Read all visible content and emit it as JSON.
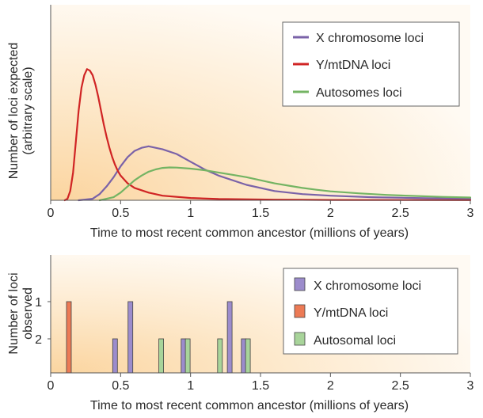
{
  "chart_data": [
    {
      "type": "line",
      "ylabel": "Number of loci expected",
      "ylabel_sub": "(arbitrary scale)",
      "xlabel": "Time to most recent common ancestor (millions of years)",
      "xlim": [
        0,
        3
      ],
      "x_ticks": [
        {
          "value": 0,
          "label": "0"
        },
        {
          "value": 0.5,
          "label": "0.5"
        },
        {
          "value": 1,
          "label": "1"
        },
        {
          "value": 1.5,
          "label": "1.5"
        },
        {
          "value": 2,
          "label": "2"
        },
        {
          "value": 2.5,
          "label": "2.5"
        },
        {
          "value": 3,
          "label": "3"
        }
      ],
      "legend_position": "top-right",
      "series": [
        {
          "name": "X chromosome loci",
          "color": "#7a62a8",
          "x": [
            0.2,
            0.3,
            0.35,
            0.4,
            0.45,
            0.5,
            0.55,
            0.6,
            0.65,
            0.7,
            0.8,
            0.9,
            1.0,
            1.1,
            1.2,
            1.4,
            1.6,
            1.8,
            2.0,
            2.3,
            2.6,
            3.0
          ],
          "y": [
            0.0,
            0.01,
            0.04,
            0.09,
            0.15,
            0.22,
            0.28,
            0.32,
            0.34,
            0.35,
            0.33,
            0.3,
            0.25,
            0.2,
            0.16,
            0.1,
            0.06,
            0.04,
            0.03,
            0.02,
            0.015,
            0.01
          ]
        },
        {
          "name": "Y/mtDNA loci",
          "color": "#d02424",
          "x": [
            0.1,
            0.12,
            0.14,
            0.16,
            0.18,
            0.2,
            0.22,
            0.24,
            0.26,
            0.28,
            0.3,
            0.32,
            0.34,
            0.36,
            0.38,
            0.4,
            0.42,
            0.44,
            0.46,
            0.48,
            0.5,
            0.55,
            0.6,
            0.7,
            0.8,
            1.0,
            1.2,
            1.6,
            2.0,
            3.0
          ],
          "y": [
            0.0,
            0.01,
            0.06,
            0.18,
            0.38,
            0.58,
            0.73,
            0.81,
            0.85,
            0.84,
            0.81,
            0.75,
            0.67,
            0.58,
            0.49,
            0.41,
            0.34,
            0.28,
            0.23,
            0.19,
            0.16,
            0.11,
            0.08,
            0.05,
            0.03,
            0.015,
            0.008,
            0.004,
            0.002,
            0.001
          ]
        },
        {
          "name": "Autosomes loci",
          "color": "#74b463",
          "x": [
            0.35,
            0.45,
            0.5,
            0.55,
            0.6,
            0.65,
            0.7,
            0.75,
            0.8,
            0.85,
            0.9,
            1.0,
            1.1,
            1.2,
            1.3,
            1.4,
            1.5,
            1.6,
            1.7,
            1.8,
            1.9,
            2.0,
            2.2,
            2.4,
            2.6,
            2.8,
            3.0
          ],
          "y": [
            0.0,
            0.02,
            0.05,
            0.09,
            0.13,
            0.16,
            0.185,
            0.2,
            0.21,
            0.213,
            0.212,
            0.205,
            0.195,
            0.18,
            0.165,
            0.15,
            0.13,
            0.11,
            0.095,
            0.08,
            0.068,
            0.058,
            0.045,
            0.035,
            0.028,
            0.022,
            0.018
          ]
        }
      ]
    },
    {
      "type": "bar",
      "ylabel": "Number of loci",
      "ylabel_sub": "observed",
      "xlabel": "Time to most recent common ancestor (millions of years)",
      "xlim": [
        0,
        3
      ],
      "y_ticks": [
        "1",
        "2"
      ],
      "x_ticks": [
        {
          "value": 0,
          "label": "0"
        },
        {
          "value": 0.5,
          "label": "0.5"
        },
        {
          "value": 1,
          "label": "1"
        },
        {
          "value": 1.5,
          "label": "1.5"
        },
        {
          "value": 2,
          "label": "2"
        },
        {
          "value": 2.5,
          "label": "2.5"
        },
        {
          "value": 3,
          "label": "3"
        }
      ],
      "legend_position": "top-right",
      "series": [
        {
          "name": "X chromosome loci",
          "color": "#9c8ccc",
          "bars": [
            [
              0.46,
              2
            ],
            [
              0.57,
              1
            ],
            [
              0.95,
              2
            ],
            [
              1.28,
              1
            ],
            [
              1.38,
              2
            ]
          ]
        },
        {
          "name": "Y/mtDNA loci",
          "color": "#ec7a55",
          "bars": [
            [
              0.13,
              1
            ]
          ]
        },
        {
          "name": "Autosomal loci",
          "color": "#a8d49a",
          "bars": [
            [
              0.79,
              2
            ],
            [
              0.98,
              2
            ],
            [
              1.21,
              2
            ],
            [
              1.41,
              2
            ]
          ]
        }
      ]
    }
  ]
}
